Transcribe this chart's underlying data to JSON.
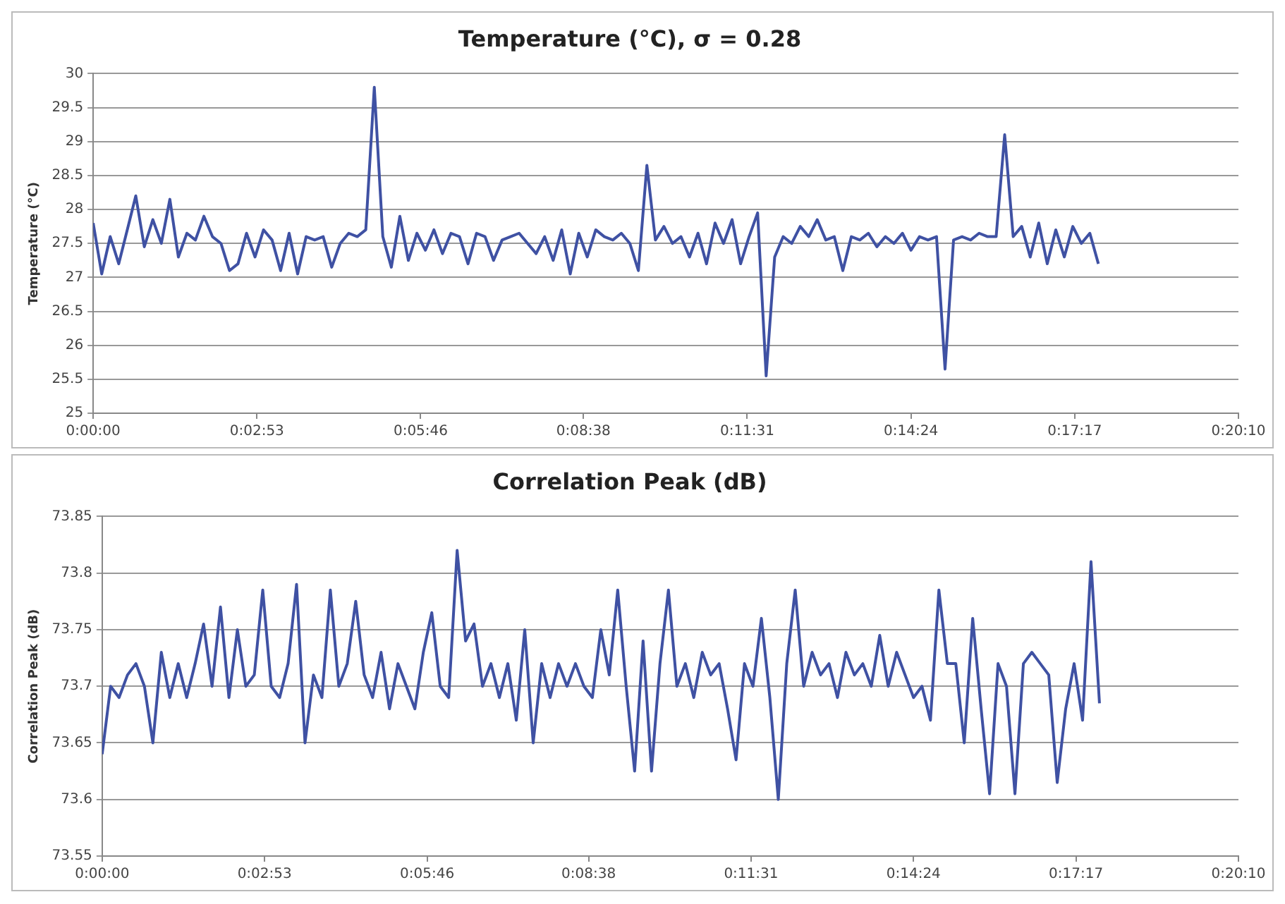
{
  "chart_data": [
    {
      "type": "line",
      "title": "Temperature (°C), σ = 0.28",
      "ylabel": "Temperature (°C)",
      "x": [
        0,
        0.0025,
        0.005,
        0.0075,
        0.01,
        0.0125,
        0.015,
        0.0175,
        0.02,
        0.0225,
        0.025,
        0.0275,
        0.03,
        0.0325,
        0.035,
        0.0375,
        0.04,
        0.0425,
        0.045,
        0.0475,
        0.05,
        0.0525,
        0.055,
        0.0575,
        0.06,
        0.0625,
        0.065,
        0.0675,
        0.07,
        0.0725,
        0.075,
        0.0775,
        0.08,
        0.0825,
        0.085,
        0.0875,
        0.09,
        0.0925,
        0.095,
        0.0975,
        0.1,
        0.1025,
        0.105,
        0.1075,
        0.11,
        0.1125,
        0.115,
        0.1175,
        0.12,
        0.1225,
        0.125,
        0.1275,
        0.13,
        0.1325,
        0.135,
        0.1375,
        0.14,
        0.1425,
        0.145,
        0.1475,
        0.15,
        0.1525,
        0.155,
        0.1575,
        0.16,
        0.1625,
        0.165,
        0.1675,
        0.17,
        0.1725,
        0.175,
        0.1775,
        0.18,
        0.1825,
        0.185,
        0.1875,
        0.19,
        0.1925,
        0.195,
        0.1975,
        0.2,
        0.2025,
        0.205,
        0.2075,
        0.21,
        0.2125,
        0.215,
        0.2175,
        0.22,
        0.2225,
        0.225,
        0.2275,
        0.23,
        0.2325,
        0.235,
        0.2375,
        0.24,
        0.2425,
        0.245,
        0.2475,
        0.25,
        0.2525,
        0.255,
        0.2575,
        0.26,
        0.2625,
        0.265,
        0.2675,
        0.27,
        0.2725,
        0.275,
        0.2775,
        0.28,
        0.2825,
        0.285,
        0.2875,
        0.29,
        0.2925,
        0.295
      ],
      "series": [
        {
          "color": "#3f51a3",
          "values": [
            27.8,
            27.05,
            27.6,
            27.2,
            27.7,
            28.2,
            27.45,
            27.85,
            27.5,
            28.15,
            27.3,
            27.65,
            27.55,
            27.9,
            27.6,
            27.5,
            27.1,
            27.2,
            27.65,
            27.3,
            27.7,
            27.55,
            27.1,
            27.65,
            27.05,
            27.6,
            27.55,
            27.6,
            27.15,
            27.5,
            27.65,
            27.6,
            27.7,
            29.8,
            27.6,
            27.15,
            27.9,
            27.25,
            27.65,
            27.4,
            27.7,
            27.35,
            27.65,
            27.6,
            27.2,
            27.65,
            27.6,
            27.25,
            27.55,
            27.6,
            27.65,
            27.5,
            27.35,
            27.6,
            27.25,
            27.7,
            27.05,
            27.65,
            27.3,
            27.7,
            27.6,
            27.55,
            27.65,
            27.5,
            27.1,
            28.65,
            27.55,
            27.75,
            27.5,
            27.6,
            27.3,
            27.65,
            27.2,
            27.8,
            27.5,
            27.85,
            27.2,
            27.6,
            27.95,
            25.55,
            27.3,
            27.6,
            27.5,
            27.75,
            27.6,
            27.85,
            27.55,
            27.6,
            27.1,
            27.6,
            27.55,
            27.65,
            27.45,
            27.6,
            27.5,
            27.65,
            27.4,
            27.6,
            27.55,
            27.6,
            25.65,
            27.55,
            27.6,
            27.55,
            27.65,
            27.6,
            27.6,
            29.1,
            27.6,
            27.75,
            27.3,
            27.8,
            27.2,
            27.7,
            27.3,
            27.75,
            27.5,
            27.65,
            27.2
          ]
        }
      ],
      "xlim": [
        0,
        0.3361111
      ],
      "xticks": [
        {
          "value": 0,
          "label": "0:00:00"
        },
        {
          "value": 0.0480556,
          "label": "0:02:53"
        },
        {
          "value": 0.0961111,
          "label": "0:05:46"
        },
        {
          "value": 0.1438889,
          "label": "0:08:38"
        },
        {
          "value": 0.1919444,
          "label": "0:11:31"
        },
        {
          "value": 0.24,
          "label": "0:14:24"
        },
        {
          "value": 0.2880556,
          "label": "0:17:17"
        },
        {
          "value": 0.3361111,
          "label": "0:20:10"
        }
      ],
      "ylim": [
        25,
        30
      ],
      "yticks": [
        25,
        25.5,
        26,
        26.5,
        27,
        27.5,
        28,
        28.5,
        29,
        29.5,
        30
      ],
      "grid": "y",
      "legend": false,
      "marker": "none",
      "line_style": "solid"
    },
    {
      "type": "line",
      "title": "Correlation Peak (dB)",
      "ylabel": "Correlation Peak (dB)",
      "x": [
        0,
        0.0025,
        0.005,
        0.0075,
        0.01,
        0.0125,
        0.015,
        0.0175,
        0.02,
        0.0225,
        0.025,
        0.0275,
        0.03,
        0.0325,
        0.035,
        0.0375,
        0.04,
        0.0425,
        0.045,
        0.0475,
        0.05,
        0.0525,
        0.055,
        0.0575,
        0.06,
        0.0625,
        0.065,
        0.0675,
        0.07,
        0.0725,
        0.075,
        0.0775,
        0.08,
        0.0825,
        0.085,
        0.0875,
        0.09,
        0.0925,
        0.095,
        0.0975,
        0.1,
        0.1025,
        0.105,
        0.1075,
        0.11,
        0.1125,
        0.115,
        0.1175,
        0.12,
        0.1225,
        0.125,
        0.1275,
        0.13,
        0.1325,
        0.135,
        0.1375,
        0.14,
        0.1425,
        0.145,
        0.1475,
        0.15,
        0.1525,
        0.155,
        0.1575,
        0.16,
        0.1625,
        0.165,
        0.1675,
        0.17,
        0.1725,
        0.175,
        0.1775,
        0.18,
        0.1825,
        0.185,
        0.1875,
        0.19,
        0.1925,
        0.195,
        0.1975,
        0.2,
        0.2025,
        0.205,
        0.2075,
        0.21,
        0.2125,
        0.215,
        0.2175,
        0.22,
        0.2225,
        0.225,
        0.2275,
        0.23,
        0.2325,
        0.235,
        0.2375,
        0.24,
        0.2425,
        0.245,
        0.2475,
        0.25,
        0.2525,
        0.255,
        0.2575,
        0.26,
        0.2625,
        0.265,
        0.2675,
        0.27,
        0.2725,
        0.275,
        0.2775,
        0.28,
        0.2825,
        0.285,
        0.2875,
        0.29,
        0.2925,
        0.295
      ],
      "series": [
        {
          "color": "#3f51a3",
          "values": [
            73.64,
            73.7,
            73.69,
            73.71,
            73.72,
            73.7,
            73.65,
            73.73,
            73.69,
            73.72,
            73.69,
            73.72,
            73.755,
            73.7,
            73.77,
            73.69,
            73.75,
            73.7,
            73.71,
            73.785,
            73.7,
            73.69,
            73.72,
            73.79,
            73.65,
            73.71,
            73.69,
            73.785,
            73.7,
            73.72,
            73.775,
            73.71,
            73.69,
            73.73,
            73.68,
            73.72,
            73.7,
            73.68,
            73.73,
            73.765,
            73.7,
            73.69,
            73.82,
            73.74,
            73.755,
            73.7,
            73.72,
            73.69,
            73.72,
            73.67,
            73.75,
            73.65,
            73.72,
            73.69,
            73.72,
            73.7,
            73.72,
            73.7,
            73.69,
            73.75,
            73.71,
            73.785,
            73.7,
            73.625,
            73.74,
            73.625,
            73.72,
            73.785,
            73.7,
            73.72,
            73.69,
            73.73,
            73.71,
            73.72,
            73.68,
            73.635,
            73.72,
            73.7,
            73.76,
            73.69,
            73.6,
            73.72,
            73.785,
            73.7,
            73.73,
            73.71,
            73.72,
            73.69,
            73.73,
            73.71,
            73.72,
            73.7,
            73.745,
            73.7,
            73.73,
            73.71,
            73.69,
            73.7,
            73.67,
            73.785,
            73.72,
            73.72,
            73.65,
            73.76,
            73.68,
            73.605,
            73.72,
            73.7,
            73.605,
            73.72,
            73.73,
            73.72,
            73.71,
            73.615,
            73.68,
            73.72,
            73.67,
            73.81,
            73.685
          ]
        }
      ],
      "xlim": [
        0,
        0.3361111
      ],
      "xticks": [
        {
          "value": 0,
          "label": "0:00:00"
        },
        {
          "value": 0.0480556,
          "label": "0:02:53"
        },
        {
          "value": 0.0961111,
          "label": "0:05:46"
        },
        {
          "value": 0.1438889,
          "label": "0:08:38"
        },
        {
          "value": 0.1919444,
          "label": "0:11:31"
        },
        {
          "value": 0.24,
          "label": "0:14:24"
        },
        {
          "value": 0.2880556,
          "label": "0:17:17"
        },
        {
          "value": 0.3361111,
          "label": "0:20:10"
        }
      ],
      "ylim": [
        73.55,
        73.85
      ],
      "yticks": [
        73.55,
        73.6,
        73.65,
        73.7,
        73.75,
        73.8,
        73.85
      ],
      "grid": "y",
      "legend": false,
      "marker": "none",
      "line_style": "solid"
    }
  ]
}
